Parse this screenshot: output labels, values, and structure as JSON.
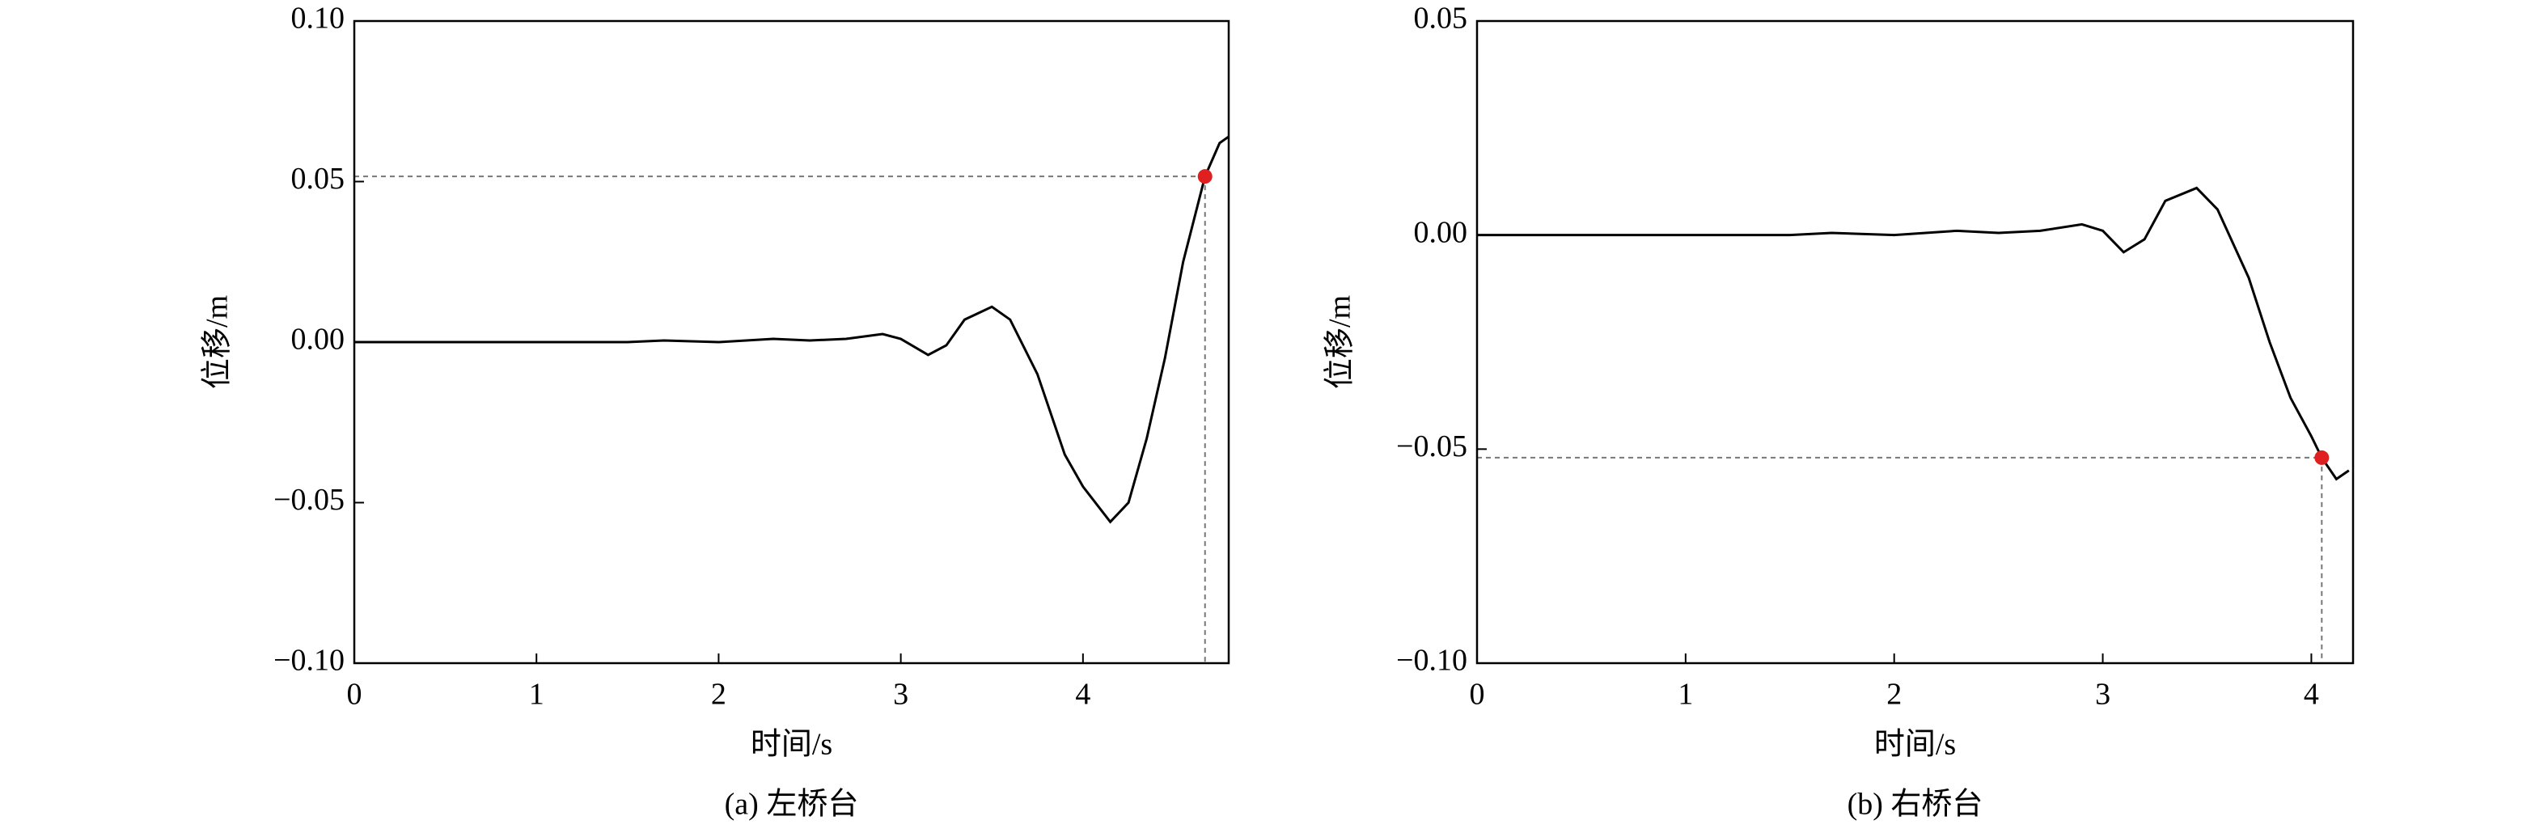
{
  "chart_data": [
    {
      "type": "line",
      "caption": "(a) 左桥台",
      "xlabel": "时间/s",
      "ylabel": "位移/m",
      "x": [
        0,
        0.5,
        1.0,
        1.5,
        1.7,
        2.0,
        2.3,
        2.5,
        2.7,
        2.9,
        3.0,
        3.15,
        3.25,
        3.35,
        3.5,
        3.6,
        3.75,
        3.9,
        4.0,
        4.15,
        4.25,
        4.35,
        4.45,
        4.55,
        4.67,
        4.75,
        4.8
      ],
      "values": [
        0,
        0,
        0,
        0,
        0.0005,
        0,
        0.001,
        0.0005,
        0.001,
        0.0025,
        0.001,
        -0.004,
        -0.001,
        0.007,
        0.011,
        0.007,
        -0.01,
        -0.035,
        -0.045,
        -0.056,
        -0.05,
        -0.03,
        -0.005,
        0.025,
        0.0516,
        0.062,
        0.064
      ],
      "color": "#000000",
      "highlight": {
        "x": 4.67,
        "y": 0.0516,
        "color": "#e02020"
      },
      "xlim": [
        0,
        4.8
      ],
      "xticks": [
        0,
        1,
        2,
        3,
        4
      ],
      "ylim": [
        -0.1,
        0.1
      ],
      "yticks": [
        {
          "value": -0.1,
          "label": "−0.10"
        },
        {
          "value": -0.05,
          "label": "−0.05"
        },
        {
          "value": 0,
          "label": "0.00"
        },
        {
          "value": 0.05,
          "label": "0.05"
        },
        {
          "value": 0.1,
          "label": "0.10"
        }
      ]
    },
    {
      "type": "line",
      "caption": "(b) 右桥台",
      "xlabel": "时间/s",
      "ylabel": "位移/m",
      "x": [
        0,
        0.5,
        1.0,
        1.5,
        1.7,
        2.0,
        2.3,
        2.5,
        2.7,
        2.9,
        3.0,
        3.1,
        3.2,
        3.3,
        3.45,
        3.55,
        3.7,
        3.8,
        3.9,
        4.0,
        4.05,
        4.12,
        4.18
      ],
      "values": [
        0,
        0,
        0,
        0,
        0.0005,
        0,
        0.001,
        0.0005,
        0.001,
        0.0025,
        0.001,
        -0.004,
        -0.001,
        0.008,
        0.011,
        0.006,
        -0.01,
        -0.025,
        -0.038,
        -0.047,
        -0.052,
        -0.057,
        -0.055
      ],
      "color": "#000000",
      "highlight": {
        "x": 4.05,
        "y": -0.052,
        "color": "#e02020"
      },
      "xlim": [
        0,
        4.2
      ],
      "xticks": [
        0,
        1,
        2,
        3,
        4
      ],
      "ylim": [
        -0.1,
        0.05
      ],
      "yticks": [
        {
          "value": -0.1,
          "label": "−0.10"
        },
        {
          "value": -0.05,
          "label": "−0.05"
        },
        {
          "value": 0,
          "label": "0.00"
        },
        {
          "value": 0.05,
          "label": "0.05"
        }
      ]
    }
  ]
}
